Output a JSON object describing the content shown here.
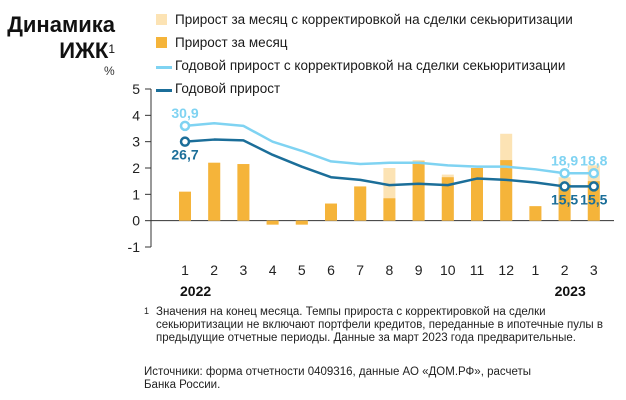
{
  "header": {
    "title_line1": "Динамика",
    "title_line2": "ИЖК",
    "title_sup": "1",
    "unit": "%"
  },
  "colors": {
    "bar_adjusted": "#FCE3B4",
    "bar_monthly": "#F5B43A",
    "line_adjusted": "#7FD3F2",
    "line_annual": "#1B6E99",
    "axis": "#333333"
  },
  "chart_data": {
    "type": "bar+line",
    "categories": [
      "1",
      "2",
      "3",
      "4",
      "5",
      "6",
      "7",
      "8",
      "9",
      "10",
      "11",
      "12",
      "1",
      "2",
      "3"
    ],
    "year_labels": [
      {
        "label": "2022",
        "category_index": 0
      },
      {
        "label": "2023",
        "category_index": 13
      }
    ],
    "yticks": [
      -1,
      0,
      1,
      2,
      3,
      4,
      5
    ],
    "ylim": [
      -1,
      5
    ],
    "series": [
      {
        "name": "Прирост за месяц с корректировкой на сделки секьюритизации",
        "type": "bar",
        "color": "#FCE3B4",
        "values": [
          1.1,
          2.2,
          2.15,
          -0.15,
          -0.15,
          0.65,
          1.3,
          2.0,
          2.3,
          1.75,
          2.0,
          3.3,
          0.55,
          1.65,
          2.1
        ]
      },
      {
        "name": "Прирост за месяц",
        "type": "bar",
        "color": "#F5B43A",
        "values": [
          1.1,
          2.2,
          2.15,
          -0.15,
          -0.15,
          0.65,
          1.3,
          0.85,
          2.25,
          1.65,
          2.0,
          2.3,
          0.55,
          1.4,
          1.5
        ]
      },
      {
        "name": "Годовой прирост с корректировкой на сделки секьюритизации",
        "type": "line",
        "color": "#7FD3F2",
        "values": [
          3.6,
          3.7,
          3.6,
          3.0,
          2.65,
          2.25,
          2.15,
          2.2,
          2.2,
          2.1,
          2.05,
          2.05,
          1.95,
          1.8,
          1.8
        ]
      },
      {
        "name": "Годовой прирост",
        "type": "line",
        "color": "#1B6E99",
        "values": [
          3.0,
          3.08,
          3.05,
          2.5,
          2.05,
          1.65,
          1.55,
          1.35,
          1.4,
          1.35,
          1.6,
          1.55,
          1.45,
          1.3,
          1.3
        ]
      }
    ],
    "annotations": [
      {
        "series": 2,
        "index": 0,
        "text": "30,9",
        "pos": "above"
      },
      {
        "series": 3,
        "index": 0,
        "text": "26,7",
        "pos": "below"
      },
      {
        "series": 2,
        "index": 13,
        "text": "18,9",
        "pos": "above"
      },
      {
        "series": 2,
        "index": 14,
        "text": "18,8",
        "pos": "above"
      },
      {
        "series": 3,
        "index": 13,
        "text": "15,5",
        "pos": "below"
      },
      {
        "series": 3,
        "index": 14,
        "text": "15,5",
        "pos": "below"
      }
    ]
  },
  "footnote": {
    "number": "1",
    "text": "Значения на конец месяца. Темпы прироста с корректировкой на сделки секьюритизации не включают портфели кредитов, переданные в ипотечные пулы в предыдущие отчетные периоды. Данные за март 2023 года предварительные."
  },
  "source": "Источники: форма отчетности 0409316, данные АО «ДОМ.РФ», расчеты Банка России."
}
